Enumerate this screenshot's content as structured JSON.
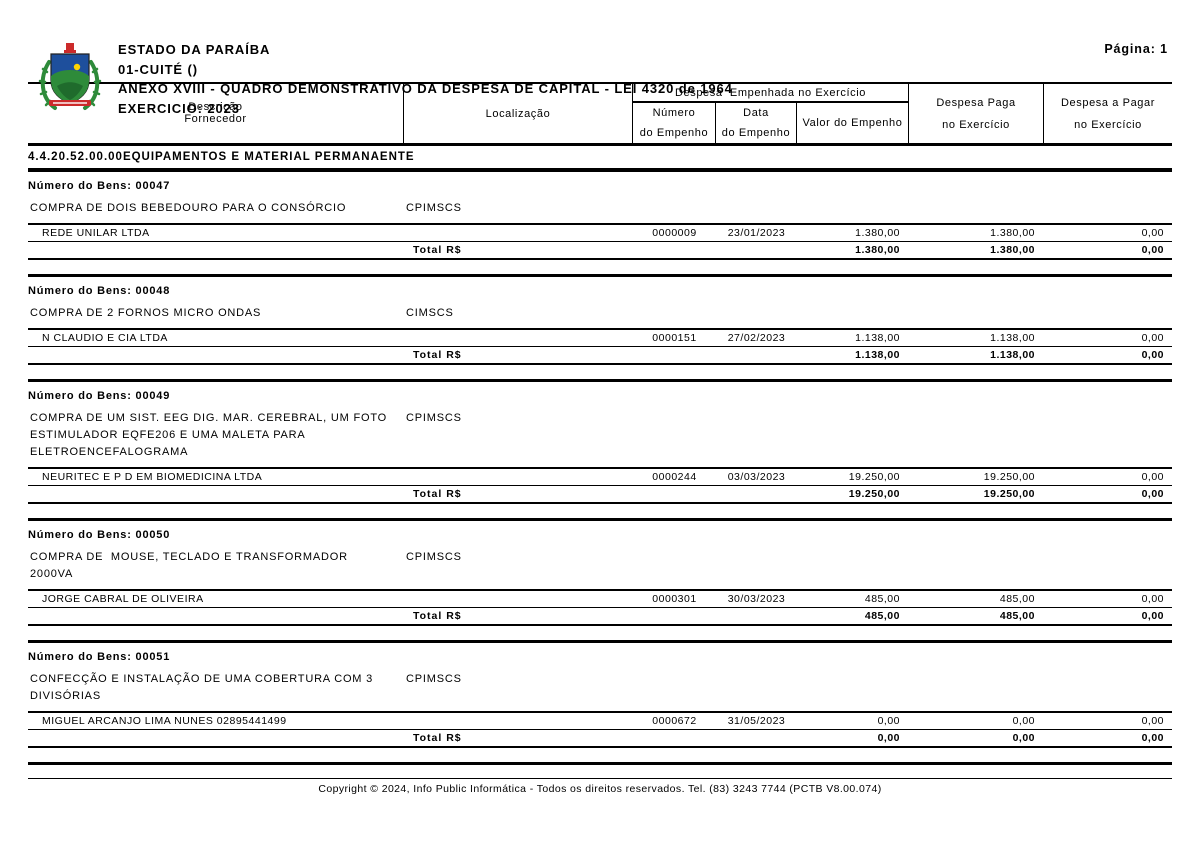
{
  "header": {
    "state": "ESTADO DA PARAÍBA",
    "municipality": "01-CUITÉ ()",
    "report_title": "ANEXO XVIII - QUADRO DEMONSTRATIVO DA DESPESA DE CAPITAL - LEI 4320 de 1964",
    "exercise": "EXERCICIO: 2023",
    "page_label": "Página: 1",
    "logo_name": "paraiba-coat-of-arms"
  },
  "table_header": {
    "descricao": "Descrição",
    "fornecedor": "Fornecedor",
    "localizacao": "Localização",
    "empenhada_group": "Despesa  Empenhada no Exercício",
    "numero_line1": "Número",
    "numero_line2": "do Empenho",
    "data_line1": "Data",
    "data_line2": "do Empenho",
    "valor": "Valor do Empenho",
    "paga_line1": "Despesa Paga",
    "paga_line2": "no Exercício",
    "pagar_line1": "Despesa a Pagar",
    "pagar_line2": "no Exercício"
  },
  "section": {
    "code": "4.4.20.52.00.00",
    "name": "EQUIPAMENTOS E MATERIAL PERMANAENTE"
  },
  "labels": {
    "bens": "Número do Bens:",
    "total": "Total R$"
  },
  "blocks": [
    {
      "bens_number": "00047",
      "description_lines": [
        "COMPRA DE DOIS BEBEDOURO PARA O CONSÓRCIO"
      ],
      "localizacao": "CPIMSCS",
      "rows": [
        {
          "fornecedor": "REDE UNILAR LTDA",
          "numero_empenho": "0000009",
          "data_empenho": "23/01/2023",
          "valor_empenho": "1.380,00",
          "despesa_paga": "1.380,00",
          "despesa_a_pagar": "0,00"
        }
      ],
      "total": {
        "valor_empenho": "1.380,00",
        "despesa_paga": "1.380,00",
        "despesa_a_pagar": "0,00"
      }
    },
    {
      "bens_number": "00048",
      "description_lines": [
        "COMPRA DE 2 FORNOS MICRO ONDAS"
      ],
      "localizacao": "CIMSCS",
      "rows": [
        {
          "fornecedor": "N CLAUDIO E CIA LTDA",
          "numero_empenho": "0000151",
          "data_empenho": "27/02/2023",
          "valor_empenho": "1.138,00",
          "despesa_paga": "1.138,00",
          "despesa_a_pagar": "0,00"
        }
      ],
      "total": {
        "valor_empenho": "1.138,00",
        "despesa_paga": "1.138,00",
        "despesa_a_pagar": "0,00"
      }
    },
    {
      "bens_number": "00049",
      "description_lines": [
        "COMPRA DE UM SIST. EEG DIG. MAR. CEREBRAL, UM FOTO",
        "ESTIMULADOR EQFE206 E UMA MALETA PARA",
        "ELETROENCEFALOGRAMA"
      ],
      "localizacao": "CPIMSCS",
      "rows": [
        {
          "fornecedor": "NEURITEC E P D EM BIOMEDICINA LTDA",
          "numero_empenho": "0000244",
          "data_empenho": "03/03/2023",
          "valor_empenho": "19.250,00",
          "despesa_paga": "19.250,00",
          "despesa_a_pagar": "0,00"
        }
      ],
      "total": {
        "valor_empenho": "19.250,00",
        "despesa_paga": "19.250,00",
        "despesa_a_pagar": "0,00"
      }
    },
    {
      "bens_number": "00050",
      "description_lines": [
        "COMPRA DE  MOUSE, TECLADO E TRANSFORMADOR 2000VA"
      ],
      "localizacao": "CPIMSCS",
      "rows": [
        {
          "fornecedor": "JORGE CABRAL DE OLIVEIRA",
          "numero_empenho": "0000301",
          "data_empenho": "30/03/2023",
          "valor_empenho": "485,00",
          "despesa_paga": "485,00",
          "despesa_a_pagar": "0,00"
        }
      ],
      "total": {
        "valor_empenho": "485,00",
        "despesa_paga": "485,00",
        "despesa_a_pagar": "0,00"
      }
    },
    {
      "bens_number": "00051",
      "description_lines": [
        "CONFECÇÃO E INSTALAÇÃO DE UMA COBERTURA COM 3",
        "DIVISÓRIAS"
      ],
      "localizacao": "CPIMSCS",
      "rows": [
        {
          "fornecedor": "MIGUEL ARCANJO LIMA NUNES 02895441499",
          "numero_empenho": "0000672",
          "data_empenho": "31/05/2023",
          "valor_empenho": "0,00",
          "despesa_paga": "0,00",
          "despesa_a_pagar": "0,00"
        }
      ],
      "total": {
        "valor_empenho": "0,00",
        "despesa_paga": "0,00",
        "despesa_a_pagar": "0,00"
      }
    }
  ],
  "footer": {
    "copyright": "Copyright © 2024, Info Public Informática - Todos os direitos reservados. Tel. (83) 3243 7744 (PCTB V8.00.074)"
  },
  "colors": {
    "background": "#ffffff",
    "text": "#000000",
    "rule": "#000000",
    "logo_green": "#2e8b3a",
    "logo_dark_green": "#1f6b2c",
    "logo_blue": "#1e4f9c",
    "logo_red": "#cc2a2a",
    "logo_yellow": "#ffd500"
  }
}
